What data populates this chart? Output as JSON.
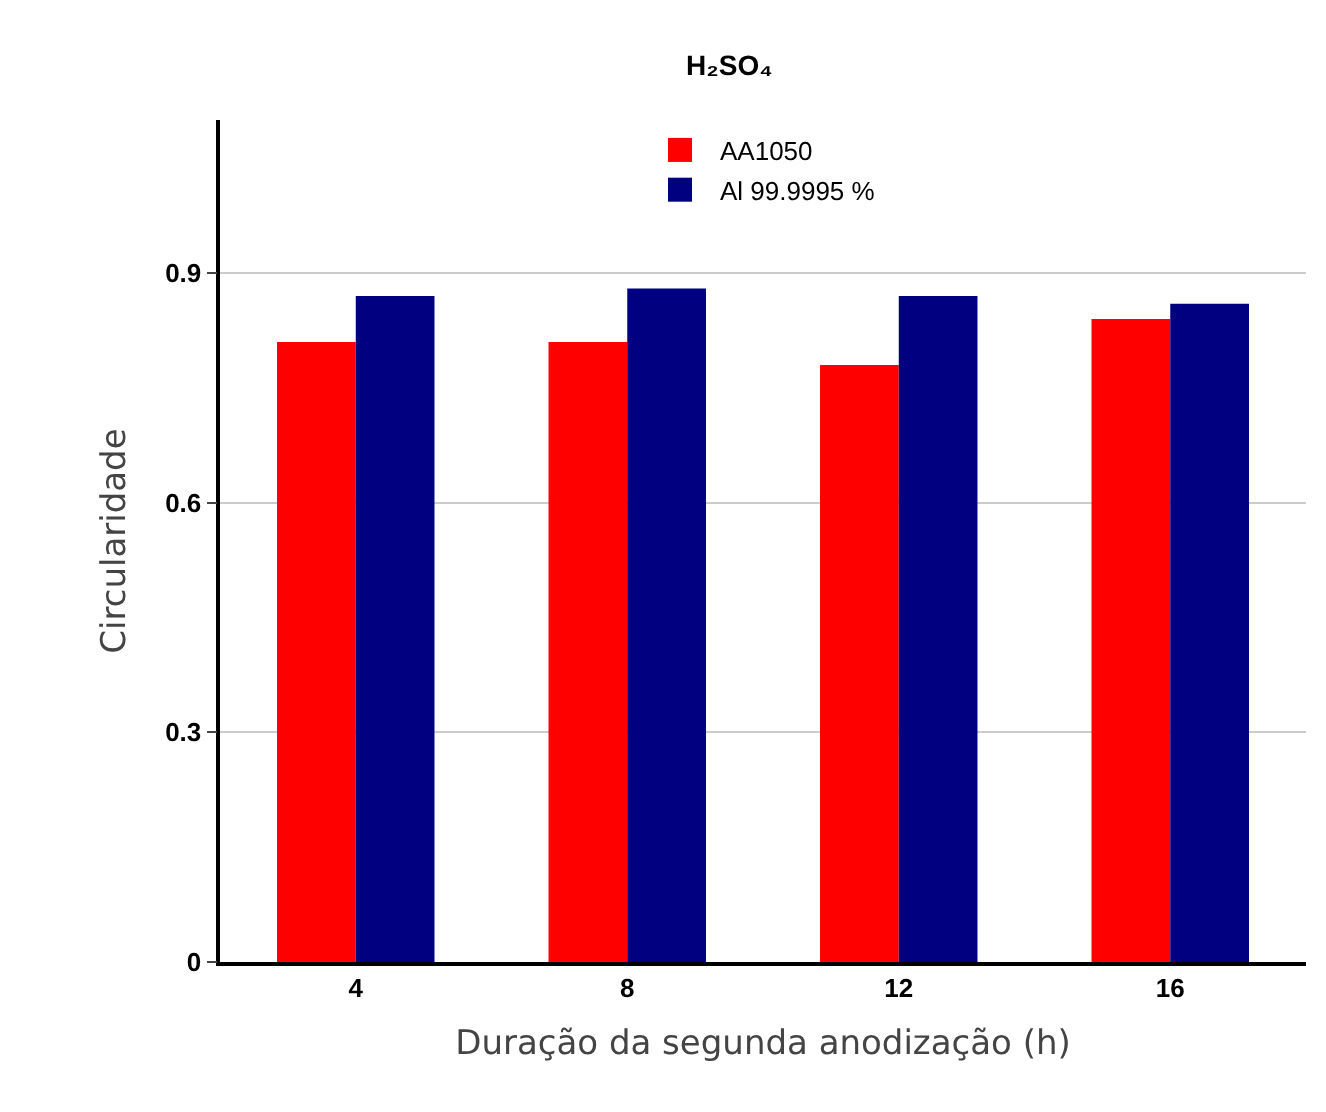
{
  "chart_data": {
    "type": "bar",
    "title": "H₂SO₄",
    "xlabel": "Duração da segunda anodização (h)",
    "ylabel": "Circularidade",
    "categories": [
      "4",
      "8",
      "12",
      "16"
    ],
    "series": [
      {
        "name": "AA1050",
        "color": "#ff0000",
        "values": [
          0.81,
          0.81,
          0.78,
          0.84
        ]
      },
      {
        "name": "Al 99.9995 %",
        "color": "#000080",
        "values": [
          0.87,
          0.88,
          0.87,
          0.86
        ]
      }
    ],
    "ylim": [
      0,
      1.1
    ],
    "yticks": [
      0,
      {
        "value": 0.3,
        "label": "0.3"
      },
      {
        "value": 0.6,
        "label": "0.6"
      },
      {
        "value": 0.9,
        "label": "0.9"
      }
    ],
    "grid": "y",
    "legend": "top"
  }
}
